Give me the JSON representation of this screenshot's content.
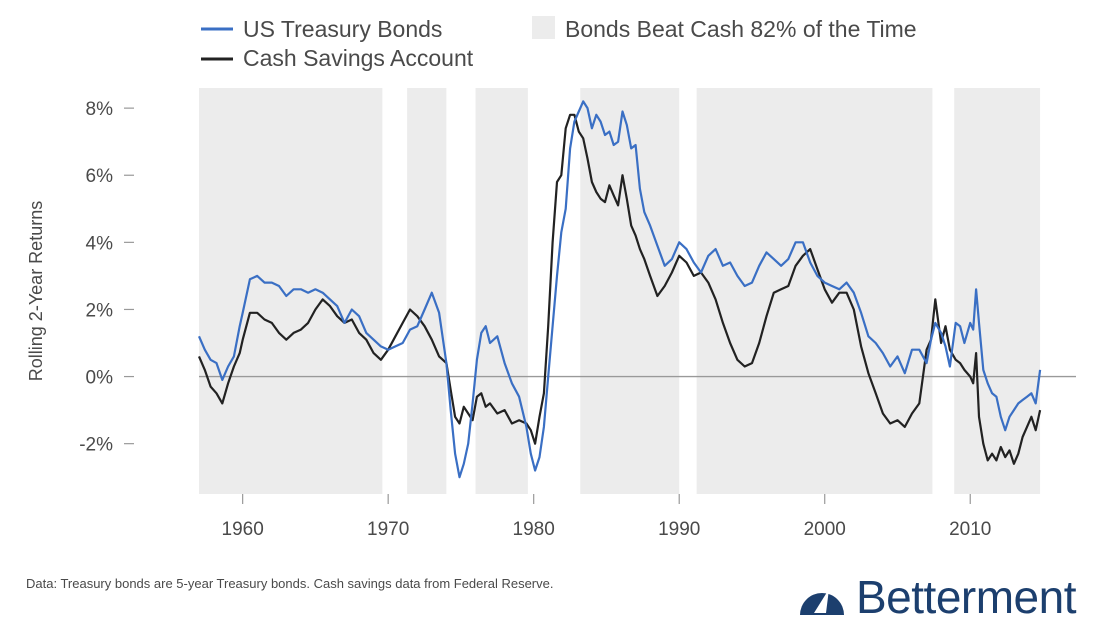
{
  "chart_data": {
    "type": "line",
    "ylabel": "Rolling 2-Year Returns",
    "xlabel": "",
    "xlim": [
      1957.0,
      2015.0
    ],
    "ylim": [
      -3.5,
      8.6
    ],
    "yticks": [
      -2,
      0,
      2,
      4,
      6,
      8
    ],
    "ytick_labels": [
      "-2%",
      "0%",
      "2%",
      "4%",
      "6%",
      "8%"
    ],
    "xticks": [
      1960,
      1970,
      1980,
      1990,
      2000,
      2010
    ],
    "xtick_labels": [
      "1960",
      "1970",
      "1980",
      "1990",
      "2000",
      "2010"
    ],
    "zero_line": true,
    "grid": false,
    "legend_position": "top",
    "legend": {
      "bonds": "US Treasury Bonds",
      "cash": "Cash Savings Account",
      "shade": "Bonds Beat Cash 82% of the Time"
    },
    "colors": {
      "bonds": "#3a6fc4",
      "cash": "#222222",
      "shade": "#ececec",
      "axis": "#999999",
      "brand": "#1c3f6e"
    },
    "shaded_periods": [
      [
        1957.0,
        1969.6
      ],
      [
        1971.3,
        1974.0
      ],
      [
        1976.0,
        1979.6
      ],
      [
        1983.2,
        1990.0
      ],
      [
        1991.2,
        2007.4
      ],
      [
        2008.9,
        2014.8
      ]
    ],
    "series": [
      {
        "name": "US Treasury Bonds",
        "key": "bonds",
        "x": [
          1957.0,
          1957.4,
          1957.8,
          1958.2,
          1958.6,
          1959.0,
          1959.4,
          1959.8,
          1960.0,
          1960.5,
          1961.0,
          1961.5,
          1962.0,
          1962.5,
          1963.0,
          1963.5,
          1964.0,
          1964.5,
          1965.0,
          1965.5,
          1966.0,
          1966.5,
          1967.0,
          1967.5,
          1968.0,
          1968.5,
          1969.0,
          1969.5,
          1970.0,
          1970.5,
          1971.0,
          1971.5,
          1972.0,
          1972.5,
          1973.0,
          1973.5,
          1974.0,
          1974.3,
          1974.6,
          1974.9,
          1975.2,
          1975.5,
          1975.8,
          1976.1,
          1976.4,
          1976.7,
          1977.0,
          1977.5,
          1978.0,
          1978.5,
          1979.0,
          1979.5,
          1979.8,
          1980.1,
          1980.4,
          1980.7,
          1981.0,
          1981.3,
          1981.6,
          1981.9,
          1982.2,
          1982.5,
          1982.8,
          1983.1,
          1983.4,
          1983.7,
          1984.0,
          1984.3,
          1984.6,
          1984.9,
          1985.2,
          1985.5,
          1985.8,
          1986.1,
          1986.4,
          1986.7,
          1987.0,
          1987.3,
          1987.6,
          1988.0,
          1988.5,
          1989.0,
          1989.5,
          1990.0,
          1990.5,
          1991.0,
          1991.5,
          1992.0,
          1992.5,
          1993.0,
          1993.5,
          1994.0,
          1994.5,
          1995.0,
          1995.5,
          1996.0,
          1996.5,
          1997.0,
          1997.5,
          1998.0,
          1998.5,
          1999.0,
          1999.5,
          2000.0,
          2000.5,
          2001.0,
          2001.5,
          2002.0,
          2002.5,
          2003.0,
          2003.5,
          2004.0,
          2004.5,
          2005.0,
          2005.5,
          2006.0,
          2006.5,
          2007.0,
          2007.3,
          2007.6,
          2008.0,
          2008.3,
          2008.6,
          2009.0,
          2009.3,
          2009.6,
          2010.0,
          2010.2,
          2010.4,
          2010.6,
          2010.9,
          2011.2,
          2011.5,
          2011.8,
          2012.1,
          2012.4,
          2012.7,
          2013.0,
          2013.3,
          2013.6,
          2013.9,
          2014.2,
          2014.5,
          2014.8
        ],
        "values": [
          1.2,
          0.8,
          0.5,
          0.4,
          -0.1,
          0.3,
          0.6,
          1.5,
          1.9,
          2.9,
          3.0,
          2.8,
          2.8,
          2.7,
          2.4,
          2.6,
          2.6,
          2.5,
          2.6,
          2.5,
          2.3,
          2.1,
          1.6,
          2.0,
          1.8,
          1.3,
          1.1,
          0.9,
          0.8,
          0.9,
          1.0,
          1.4,
          1.5,
          2.0,
          2.5,
          1.9,
          0.4,
          -1.0,
          -2.3,
          -3.0,
          -2.6,
          -2.0,
          -0.8,
          0.5,
          1.3,
          1.5,
          1.0,
          1.2,
          0.4,
          -0.2,
          -0.6,
          -1.5,
          -2.3,
          -2.8,
          -2.4,
          -1.5,
          0.0,
          1.5,
          3.0,
          4.3,
          5.0,
          6.8,
          7.6,
          7.9,
          8.2,
          8.0,
          7.4,
          7.8,
          7.6,
          7.2,
          7.3,
          6.9,
          7.0,
          7.9,
          7.5,
          6.8,
          6.9,
          5.6,
          4.9,
          4.5,
          3.9,
          3.3,
          3.5,
          4.0,
          3.8,
          3.4,
          3.1,
          3.6,
          3.8,
          3.3,
          3.4,
          3.0,
          2.7,
          2.8,
          3.3,
          3.7,
          3.5,
          3.3,
          3.5,
          4.0,
          4.0,
          3.4,
          3.0,
          2.8,
          2.7,
          2.6,
          2.8,
          2.5,
          1.9,
          1.2,
          1.0,
          0.7,
          0.3,
          0.6,
          0.1,
          0.8,
          0.8,
          0.4,
          1.1,
          1.6,
          1.3,
          0.9,
          0.3,
          1.6,
          1.5,
          1.0,
          1.6,
          1.4,
          2.6,
          1.6,
          0.2,
          -0.2,
          -0.5,
          -0.6,
          -1.2,
          -1.6,
          -1.2,
          -1.0,
          -0.8,
          -0.7,
          -0.6,
          -0.5,
          -0.8,
          0.2
        ],
        "color": "#3a6fc4"
      },
      {
        "name": "Cash Savings Account",
        "key": "cash",
        "x": [
          1957.0,
          1957.4,
          1957.8,
          1958.2,
          1958.6,
          1959.0,
          1959.4,
          1959.8,
          1960.0,
          1960.5,
          1961.0,
          1961.5,
          1962.0,
          1962.5,
          1963.0,
          1963.5,
          1964.0,
          1964.5,
          1965.0,
          1965.5,
          1966.0,
          1966.5,
          1967.0,
          1967.5,
          1968.0,
          1968.5,
          1969.0,
          1969.5,
          1970.0,
          1970.5,
          1971.0,
          1971.5,
          1972.0,
          1972.5,
          1973.0,
          1973.5,
          1974.0,
          1974.3,
          1974.6,
          1974.9,
          1975.2,
          1975.5,
          1975.8,
          1976.1,
          1976.4,
          1976.7,
          1977.0,
          1977.5,
          1978.0,
          1978.5,
          1979.0,
          1979.5,
          1979.8,
          1980.1,
          1980.4,
          1980.7,
          1981.0,
          1981.3,
          1981.6,
          1981.9,
          1982.2,
          1982.5,
          1982.8,
          1983.1,
          1983.4,
          1983.7,
          1984.0,
          1984.3,
          1984.6,
          1984.9,
          1985.2,
          1985.5,
          1985.8,
          1986.1,
          1986.4,
          1986.7,
          1987.0,
          1987.3,
          1987.6,
          1988.0,
          1988.5,
          1989.0,
          1989.5,
          1990.0,
          1990.5,
          1991.0,
          1991.5,
          1992.0,
          1992.5,
          1993.0,
          1993.5,
          1994.0,
          1994.5,
          1995.0,
          1995.5,
          1996.0,
          1996.5,
          1997.0,
          1997.5,
          1998.0,
          1998.5,
          1999.0,
          1999.5,
          2000.0,
          2000.5,
          2001.0,
          2001.5,
          2002.0,
          2002.5,
          2003.0,
          2003.5,
          2004.0,
          2004.5,
          2005.0,
          2005.5,
          2006.0,
          2006.5,
          2007.0,
          2007.3,
          2007.6,
          2008.0,
          2008.3,
          2008.6,
          2009.0,
          2009.3,
          2009.6,
          2010.0,
          2010.2,
          2010.4,
          2010.6,
          2010.9,
          2011.2,
          2011.5,
          2011.8,
          2012.1,
          2012.4,
          2012.7,
          2013.0,
          2013.3,
          2013.6,
          2013.9,
          2014.2,
          2014.5,
          2014.8
        ],
        "values": [
          0.6,
          0.2,
          -0.3,
          -0.5,
          -0.8,
          -0.2,
          0.3,
          0.7,
          1.1,
          1.9,
          1.9,
          1.7,
          1.6,
          1.3,
          1.1,
          1.3,
          1.4,
          1.6,
          2.0,
          2.3,
          2.1,
          1.8,
          1.6,
          1.7,
          1.3,
          1.1,
          0.7,
          0.5,
          0.8,
          1.2,
          1.6,
          2.0,
          1.8,
          1.5,
          1.1,
          0.6,
          0.4,
          -0.4,
          -1.2,
          -1.4,
          -0.9,
          -1.1,
          -1.3,
          -0.6,
          -0.5,
          -0.9,
          -0.8,
          -1.1,
          -1.0,
          -1.4,
          -1.3,
          -1.4,
          -1.6,
          -2.0,
          -1.2,
          -0.5,
          1.5,
          4.0,
          5.8,
          6.0,
          7.4,
          7.8,
          7.8,
          7.3,
          7.1,
          6.5,
          5.8,
          5.5,
          5.3,
          5.2,
          5.7,
          5.4,
          5.1,
          6.0,
          5.3,
          4.5,
          4.2,
          3.8,
          3.5,
          3.0,
          2.4,
          2.7,
          3.1,
          3.6,
          3.4,
          3.0,
          3.1,
          2.8,
          2.3,
          1.6,
          1.0,
          0.5,
          0.3,
          0.4,
          1.0,
          1.8,
          2.5,
          2.6,
          2.7,
          3.3,
          3.6,
          3.8,
          3.2,
          2.6,
          2.2,
          2.5,
          2.5,
          2.0,
          0.9,
          0.1,
          -0.5,
          -1.1,
          -1.4,
          -1.3,
          -1.5,
          -1.1,
          -0.8,
          0.8,
          1.1,
          2.3,
          1.0,
          1.5,
          0.8,
          0.5,
          0.4,
          0.2,
          0.0,
          -0.2,
          0.7,
          -1.2,
          -2.0,
          -2.5,
          -2.3,
          -2.5,
          -2.1,
          -2.4,
          -2.2,
          -2.6,
          -2.3,
          -1.8,
          -1.5,
          -1.2,
          -1.6,
          -1.0
        ],
        "color": "#222222"
      }
    ]
  },
  "footnote": "Data: Treasury bonds are 5-year Treasury bonds. Cash savings data from Federal Reserve.",
  "brand": {
    "name": "Betterment",
    "logo_icon": "gauge-icon"
  }
}
